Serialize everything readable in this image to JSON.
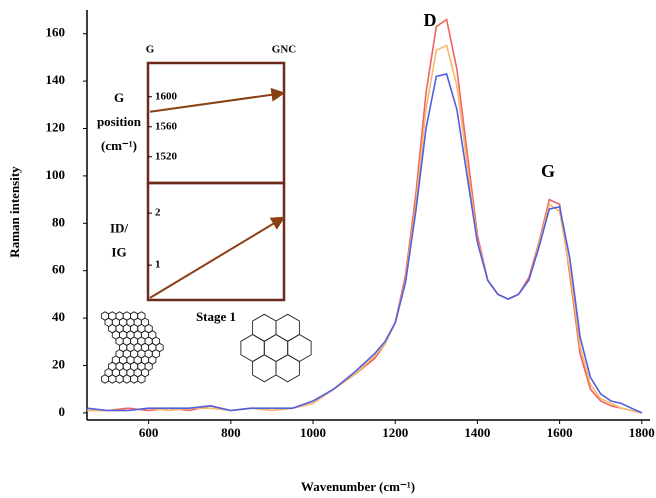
{
  "chart_data": [
    {
      "type": "line",
      "x_label": "Wavenumber (cm⁻¹)",
      "y_label": "Raman intensity",
      "annotations": [
        "D",
        "G"
      ],
      "x": [
        450,
        500,
        550,
        600,
        650,
        700,
        750,
        800,
        850,
        900,
        950,
        1000,
        1050,
        1100,
        1150,
        1175,
        1200,
        1225,
        1250,
        1275,
        1300,
        1325,
        1350,
        1375,
        1400,
        1425,
        1450,
        1475,
        1500,
        1525,
        1550,
        1575,
        1600,
        1625,
        1650,
        1675,
        1700,
        1725,
        1750,
        1775,
        1800
      ],
      "xlim": [
        450,
        1820
      ],
      "ylim": [
        -3,
        170
      ],
      "xticks": [
        600,
        800,
        1000,
        1200,
        1400,
        1600,
        1800
      ],
      "yticks": [
        0,
        20,
        40,
        60,
        80,
        100,
        120,
        140,
        160
      ],
      "grid": false,
      "series": [
        {
          "color": "#f0625c",
          "values": [
            1,
            1,
            2,
            1,
            2,
            1,
            3,
            1,
            2,
            1,
            2,
            4,
            10,
            16,
            23,
            29,
            38,
            58,
            92,
            135,
            163,
            166,
            145,
            110,
            75,
            56,
            50,
            48,
            50,
            57,
            72,
            90,
            88,
            58,
            25,
            10,
            5,
            3,
            2,
            1,
            0
          ]
        },
        {
          "color": "#f7b96a",
          "values": [
            1,
            1,
            1,
            2,
            1,
            2,
            2,
            1,
            2,
            1,
            2,
            4,
            10,
            16,
            24,
            29,
            38,
            56,
            88,
            128,
            153,
            155,
            138,
            105,
            73,
            56,
            50,
            48,
            50,
            56,
            71,
            88,
            85,
            60,
            28,
            12,
            6,
            4,
            2,
            1,
            0
          ]
        },
        {
          "color": "#4f5fe0",
          "values": [
            2,
            1,
            1,
            2,
            2,
            2,
            3,
            1,
            2,
            2,
            2,
            5,
            10,
            17,
            25,
            30,
            38,
            55,
            85,
            120,
            142,
            143,
            128,
            100,
            72,
            56,
            50,
            48,
            50,
            56,
            70,
            86,
            87,
            65,
            32,
            15,
            8,
            5,
            4,
            2,
            0
          ]
        }
      ]
    },
    {
      "type": "line",
      "categories": [
        "G",
        "GNC"
      ],
      "y_label": [
        "G",
        "position",
        "(cm⁻¹)"
      ],
      "ylim": [
        1485,
        1645
      ],
      "yticks": [
        1520,
        1560,
        1600
      ],
      "color": "#8b3f14",
      "values": [
        1580,
        1605
      ]
    },
    {
      "type": "line",
      "x_label": "Stage 1",
      "y_label": [
        "ID/",
        "IG"
      ],
      "ylim": [
        0.33,
        2.58
      ],
      "yticks": [
        1,
        2
      ],
      "color": "#8b3f14",
      "values": [
        0.37,
        1.92
      ]
    }
  ]
}
